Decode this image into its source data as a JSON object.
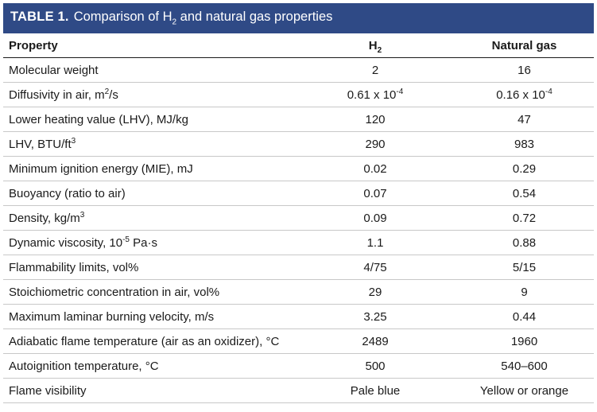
{
  "caption": {
    "label": "TABLE 1.",
    "title_pre": "Comparison of H",
    "title_sub": "2",
    "title_post": " and natural gas properties"
  },
  "headers": {
    "property": "Property",
    "h2_base": "H",
    "h2_sub": "2",
    "ng": "Natural gas"
  },
  "rows": [
    {
      "property": "Molecular weight",
      "h2": "2",
      "ng": "16"
    },
    {
      "property_base": "Diffusivity in air, m",
      "property_sup": "2",
      "property_post": "/s",
      "h2_base": "0.61 x 10",
      "h2_sup": "-4",
      "ng_base": "0.16 x 10",
      "ng_sup": "-4"
    },
    {
      "property": "Lower heating value (LHV), MJ/kg",
      "h2": "120",
      "ng": "47"
    },
    {
      "property_base": "LHV, BTU/ft",
      "property_sup": "3",
      "h2": "290",
      "ng": "983"
    },
    {
      "property": "Minimum ignition energy (MIE), mJ",
      "h2": "0.02",
      "ng": "0.29"
    },
    {
      "property": "Buoyancy (ratio to air)",
      "h2": "0.07",
      "ng": "0.54"
    },
    {
      "property_base": "Density, kg/m",
      "property_sup": "3",
      "h2": "0.09",
      "ng": "0.72"
    },
    {
      "property_base": "Dynamic viscosity, 10",
      "property_sup": "-5",
      "property_post": " Pa·s",
      "h2": "1.1",
      "ng": "0.88"
    },
    {
      "property": "Flammability limits, vol%",
      "h2": "4/75",
      "ng": "5/15"
    },
    {
      "property": "Stoichiometric concentration in air, vol%",
      "h2": "29",
      "ng": "9"
    },
    {
      "property": "Maximum laminar burning velocity, m/s",
      "h2": "3.25",
      "ng": "0.44"
    },
    {
      "property": "Adiabatic flame temperature (air as an oxidizer), °C",
      "h2": "2489",
      "ng": "1960"
    },
    {
      "property": "Autoignition temperature, °C",
      "h2": "500",
      "ng": "540–600"
    },
    {
      "property": "Flame visibility",
      "h2": "Pale blue",
      "ng": "Yellow or orange"
    }
  ],
  "colors": {
    "caption_bg": "#2f4a86",
    "caption_text": "#ffffff",
    "rule": "#c8c8c8"
  }
}
